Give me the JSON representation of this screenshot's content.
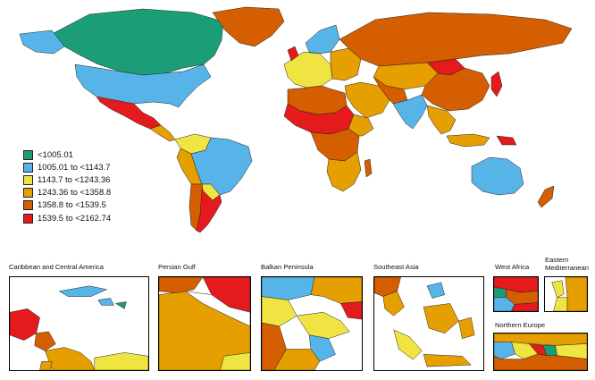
{
  "legend": {
    "items": [
      {
        "label": "<1005.01",
        "color": "#1b9e77"
      },
      {
        "label": "1005.01 to <1143.7",
        "color": "#56b4e9"
      },
      {
        "label": "1143.7 to <1243.36",
        "color": "#f0e442"
      },
      {
        "label": "1243.36 to <1358.8",
        "color": "#e69f00"
      },
      {
        "label": "1358.8 to <1539.5",
        "color": "#d55e00"
      },
      {
        "label": "1539.5 to <2162.74",
        "color": "#e41a1c"
      }
    ]
  },
  "insets": [
    {
      "title": "Caribbean and Central America"
    },
    {
      "title": "Persian Gulf"
    },
    {
      "title": "Balkan Peninsula"
    },
    {
      "title": "Southeast Asia"
    },
    {
      "title": "West Africa"
    },
    {
      "title": "Eastern Mediterranean"
    },
    {
      "title": "Northern Europe"
    }
  ]
}
